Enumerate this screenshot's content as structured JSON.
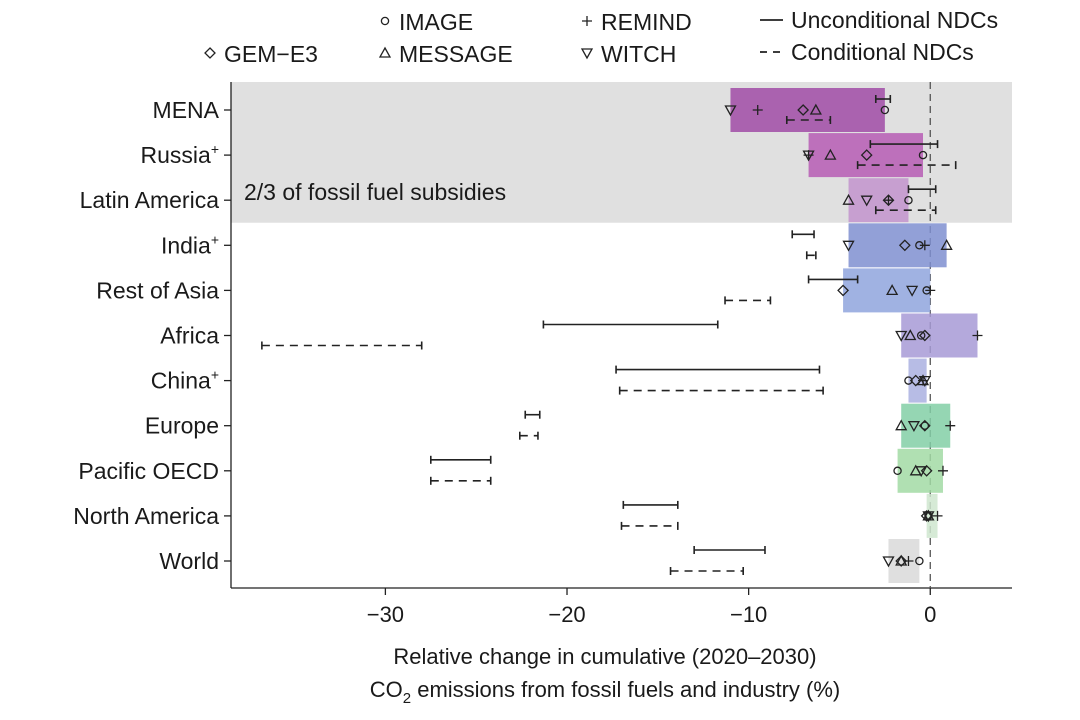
{
  "chart_data": {
    "type": "bar",
    "xlabel_line1": "Relative change in cumulative (2020–2030)",
    "xlabel_line2_prefix": "CO",
    "xlabel_line2_sub": "2",
    "xlabel_line2_suffix": " emissions from fossil fuels and industry (%)",
    "xlim": [
      -38.5,
      4.5
    ],
    "xticks": [
      -30,
      -20,
      -10,
      0
    ],
    "xtick_labels": [
      "−30",
      "−20",
      "−10",
      "0"
    ],
    "shaded_region": {
      "label": "2/3 of fossil fuel subsidies",
      "regions": [
        "MENA",
        "Russia",
        "Latin America"
      ]
    },
    "legend": {
      "models": [
        {
          "name": "IMAGE",
          "marker": "circle"
        },
        {
          "name": "REMIND",
          "marker": "plus"
        },
        {
          "name": "GEM−E3",
          "marker": "diamond"
        },
        {
          "name": "MESSAGE",
          "marker": "triangle-up"
        },
        {
          "name": "WITCH",
          "marker": "triangle-down"
        }
      ],
      "lines": [
        {
          "name": "Unconditional NDCs",
          "style": "solid"
        },
        {
          "name": "Conditional NDCs",
          "style": "dashed"
        }
      ]
    },
    "regions": [
      {
        "name": "MENA",
        "sup": "",
        "color": "#a04ba6",
        "bar": [
          -11.0,
          -2.5
        ],
        "models": {
          "IMAGE": -2.5,
          "REMIND": -9.5,
          "GEM-E3": -7.0,
          "MESSAGE": -6.3,
          "WITCH": -11.0
        },
        "unconditional": [
          -3.0,
          -2.2
        ],
        "conditional": [
          -7.9,
          -5.5
        ]
      },
      {
        "name": "Russia",
        "sup": "+",
        "color": "#b65cb4",
        "bar": [
          -6.7,
          -0.4
        ],
        "models": {
          "IMAGE": -0.4,
          "REMIND": -6.7,
          "GEM-E3": -3.5,
          "MESSAGE": -5.5,
          "WITCH": -6.7
        },
        "unconditional": [
          -3.3,
          0.4
        ],
        "conditional": [
          -4.0,
          1.4
        ]
      },
      {
        "name": "Latin America",
        "sup": "",
        "color": "#c293cc",
        "bar": [
          -4.5,
          -1.2
        ],
        "models": {
          "IMAGE": -1.2,
          "REMIND": -2.3,
          "GEM-E3": -2.3,
          "MESSAGE": -4.5,
          "WITCH": -3.5
        },
        "unconditional": [
          -1.2,
          0.3
        ],
        "conditional": [
          -3.0,
          0.3
        ]
      },
      {
        "name": "India",
        "sup": "+",
        "color": "#7f8fd0",
        "bar": [
          -4.5,
          0.9
        ],
        "models": {
          "IMAGE": -0.6,
          "REMIND": -0.3,
          "GEM-E3": -1.4,
          "MESSAGE": 0.9,
          "WITCH": -4.5
        },
        "unconditional": [
          -7.6,
          -6.4
        ],
        "conditional": [
          -6.8,
          -6.3
        ]
      },
      {
        "name": "Rest of Asia",
        "sup": "",
        "color": "#8fa5dd",
        "bar": [
          -4.8,
          0.0
        ],
        "models": {
          "IMAGE": -0.2,
          "REMIND": 0.0,
          "GEM-E3": -4.8,
          "MESSAGE": -2.1,
          "WITCH": -1.0
        },
        "unconditional": [
          -6.7,
          -4.0
        ],
        "conditional": [
          -11.3,
          -8.8
        ]
      },
      {
        "name": "Africa",
        "sup": "",
        "color": "#a79ad6",
        "bar": [
          -1.6,
          2.6
        ],
        "models": {
          "IMAGE": -0.5,
          "REMIND": 2.6,
          "GEM-E3": -0.3,
          "MESSAGE": -1.1,
          "WITCH": -1.6
        },
        "unconditional": [
          -21.3,
          -11.7
        ],
        "conditional": [
          -36.8,
          -28.0
        ]
      },
      {
        "name": "China",
        "sup": "+",
        "color": "#aab0e0",
        "bar": [
          -1.2,
          -0.2
        ],
        "models": {
          "IMAGE": -1.2,
          "REMIND": -0.4,
          "GEM-E3": -0.8,
          "MESSAGE": -0.4,
          "WITCH": -0.3
        },
        "unconditional": [
          -17.3,
          -6.1
        ],
        "conditional": [
          -17.1,
          -5.9
        ]
      },
      {
        "name": "Europe",
        "sup": "",
        "color": "#82cfa6",
        "bar": [
          -1.6,
          1.1
        ],
        "models": {
          "IMAGE": -0.3,
          "REMIND": 1.1,
          "GEM-E3": -0.3,
          "MESSAGE": -1.6,
          "WITCH": -0.9
        },
        "unconditional": [
          -22.3,
          -21.5
        ],
        "conditional": [
          -22.6,
          -21.6
        ]
      },
      {
        "name": "Pacific OECD",
        "sup": "",
        "color": "#a2dba5",
        "bar": [
          -1.8,
          0.7
        ],
        "models": {
          "IMAGE": -1.8,
          "REMIND": 0.7,
          "GEM-E3": -0.2,
          "MESSAGE": -0.8,
          "WITCH": -0.5
        },
        "unconditional": [
          -27.5,
          -24.2
        ],
        "conditional": [
          -27.5,
          -24.2
        ]
      },
      {
        "name": "North America",
        "sup": "",
        "color": "#cfe6cf",
        "bar": [
          -0.2,
          0.4
        ],
        "models": {
          "IMAGE": -0.1,
          "REMIND": 0.4,
          "GEM-E3": -0.2,
          "MESSAGE": -0.1,
          "WITCH": -0.1
        },
        "unconditional": [
          -16.9,
          -13.9
        ],
        "conditional": [
          -17.0,
          -13.9
        ]
      },
      {
        "name": "World",
        "sup": "",
        "color": "#d9d9d9",
        "bar": [
          -2.3,
          -0.6
        ],
        "models": {
          "IMAGE": -0.6,
          "REMIND": -1.2,
          "GEM-E3": -1.6,
          "MESSAGE": -1.6,
          "WITCH": -2.3
        },
        "unconditional": [
          -13.0,
          -9.1
        ],
        "conditional": [
          -14.3,
          -10.3
        ]
      }
    ]
  }
}
